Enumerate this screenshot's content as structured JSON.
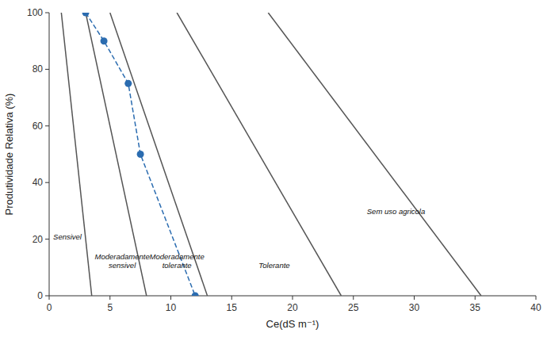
{
  "chart_data": {
    "type": "line",
    "xlabel": "Ce(dS m⁻¹)",
    "ylabel": "Produtividade Relativa (%)",
    "xlim": [
      0,
      40
    ],
    "ylim": [
      0,
      100
    ],
    "xticks": [
      0,
      5,
      10,
      15,
      20,
      25,
      30,
      35,
      40
    ],
    "yticks": [
      0,
      20,
      40,
      60,
      80,
      100
    ],
    "grid": false,
    "series": [
      {
        "x": [
          1.0,
          3.5
        ],
        "values": [
          100,
          0
        ],
        "color": "#555555",
        "line_style": "solid"
      },
      {
        "x": [
          3.0,
          8.0
        ],
        "values": [
          100,
          0
        ],
        "color": "#555555",
        "line_style": "solid"
      },
      {
        "x": [
          5.0,
          13.0
        ],
        "values": [
          100,
          0
        ],
        "color": "#555555",
        "line_style": "solid"
      },
      {
        "x": [
          10.5,
          24.0
        ],
        "values": [
          100,
          0
        ],
        "color": "#555555",
        "line_style": "solid"
      },
      {
        "x": [
          18.0,
          35.5
        ],
        "values": [
          100,
          0
        ],
        "color": "#555555",
        "line_style": "solid"
      },
      {
        "x": [
          3.0,
          4.5,
          6.5,
          7.5,
          12.0
        ],
        "values": [
          100,
          90,
          75,
          50,
          0
        ],
        "color": "#2b6cb0",
        "line_style": "dashed",
        "marker": "circle"
      }
    ],
    "annotations": [
      {
        "text": "Sensivel",
        "x": 1.5,
        "y": 19
      },
      {
        "text": "Moderadamente\nsensivel",
        "x": 6.0,
        "y": 9
      },
      {
        "text": "Moderadamente\ntolerante",
        "x": 10.5,
        "y": 9
      },
      {
        "text": "Tolerante",
        "x": 18.5,
        "y": 9
      },
      {
        "text": "Sem uso agricola",
        "x": 28.5,
        "y": 28
      }
    ]
  }
}
